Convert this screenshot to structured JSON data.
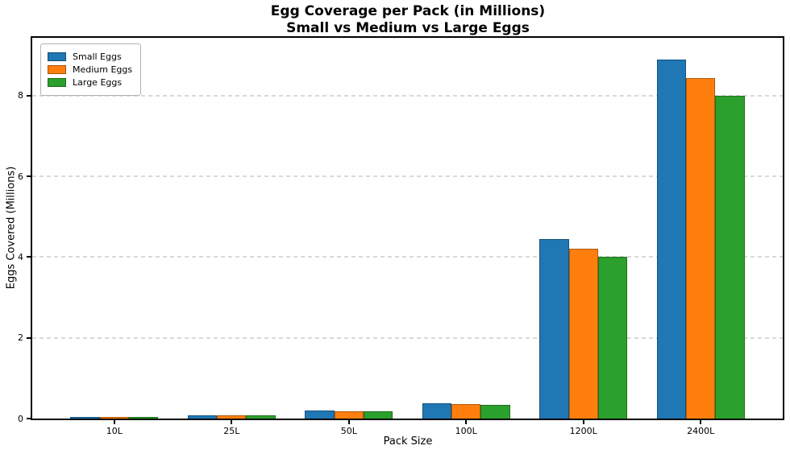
{
  "chart_data": {
    "type": "bar",
    "title": "Egg Coverage per Pack (in Millions)",
    "subtitle": "Small vs Medium vs Large Eggs",
    "xlabel": "Pack Size",
    "ylabel": "Eggs Covered (Millions)",
    "categories": [
      "10L",
      "25L",
      "50L",
      "100L",
      "1200L",
      "2400L"
    ],
    "series": [
      {
        "name": "Small Eggs",
        "color": "#1f77b4",
        "values": [
          0.04,
          0.09,
          0.19,
          0.37,
          4.44,
          8.89
        ]
      },
      {
        "name": "Medium Eggs",
        "color": "#ff7f0e",
        "values": [
          0.035,
          0.088,
          0.18,
          0.35,
          4.21,
          8.44
        ]
      },
      {
        "name": "Large Eggs",
        "color": "#2ca02c",
        "values": [
          0.033,
          0.083,
          0.17,
          0.33,
          4.0,
          8.0
        ]
      }
    ],
    "yticks": [
      0,
      2,
      4,
      6,
      8
    ],
    "ylim": [
      0,
      9.43
    ],
    "grid": "horizontal dashed",
    "legend_position": "upper left",
    "background": "#ffffff",
    "spine_color": "#000000",
    "grid_color": "#d9d9d9"
  }
}
